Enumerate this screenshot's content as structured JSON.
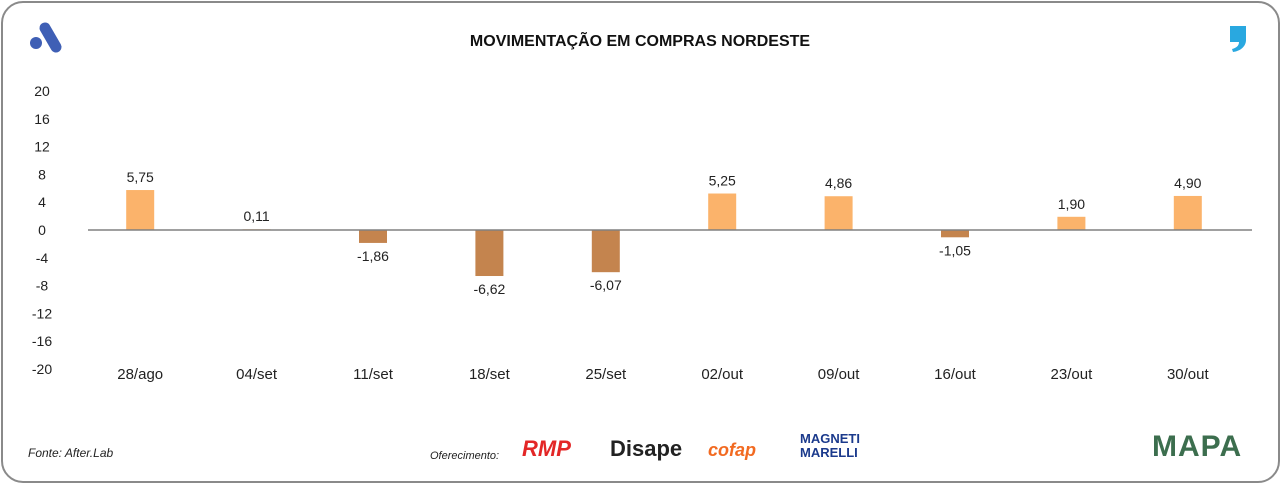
{
  "chart_data": {
    "type": "bar",
    "title": "MOVIMENTAÇÃO EM COMPRAS NORDESTE",
    "categories": [
      "28/ago",
      "04/set",
      "11/set",
      "18/set",
      "25/set",
      "02/out",
      "09/out",
      "16/out",
      "23/out",
      "30/out"
    ],
    "values": [
      5.75,
      0.11,
      -1.86,
      -6.62,
      -6.07,
      5.25,
      4.86,
      -1.05,
      1.9,
      4.9
    ],
    "data_labels": [
      "5,75",
      "0,11",
      "-1,86",
      "-6,62",
      "-6,07",
      "5,25",
      "4,86",
      "-1,05",
      "1,90",
      "4,90"
    ],
    "ylim": [
      -20,
      20
    ],
    "yticks": [
      20,
      16,
      12,
      8,
      4,
      0,
      -4,
      -8,
      -12,
      -16,
      -20
    ],
    "grid": false,
    "colors": {
      "positive": "#FBB36B",
      "negative": "#C4844E",
      "axis": "#808080"
    }
  },
  "footer": {
    "source": "Fonte: After.Lab",
    "offer": "Oferecimento:",
    "sponsors": [
      "RMP",
      "Disape",
      "cofap",
      "MAGNETI MARELLI"
    ],
    "mapa": "MAPA"
  },
  "icons": {
    "top_left": "after-lab-logo",
    "top_right": "comma-logo"
  }
}
